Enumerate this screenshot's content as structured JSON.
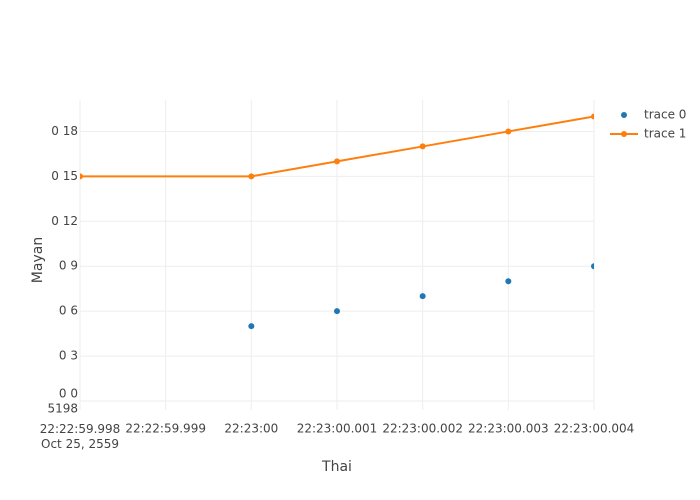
{
  "chart_data": {
    "type": "scatter",
    "x_label": "Thai",
    "y_label": "Mayan",
    "xlim": [
      "22:22:59.998",
      "22:23:00.004"
    ],
    "xticks": [
      {
        "value": "22:22:59.998",
        "label": "22:22:59.998\nOct 25, 2559"
      },
      "22:22:59.999",
      "22:23:00",
      "22:23:00.001",
      "22:23:00.002",
      "22:23:00.003",
      "22:23:00.004"
    ],
    "ylim": [
      -0.6,
      20.1
    ],
    "yticks": [
      {
        "value": 0,
        "label": "0 0\n5198"
      },
      {
        "value": 3,
        "label": "0 3"
      },
      {
        "value": 6,
        "label": "0 6"
      },
      {
        "value": 9,
        "label": "0 9"
      },
      {
        "value": 12,
        "label": "0 12"
      },
      {
        "value": 15,
        "label": "0 15"
      },
      {
        "value": 18,
        "label": "0 18"
      }
    ],
    "grid": true,
    "series": [
      {
        "name": "trace 0",
        "mode": "markers",
        "color": "#1f77b4",
        "x": [
          "22:23:00",
          "22:23:00.001",
          "22:23:00.002",
          "22:23:00.003",
          "22:23:00.004"
        ],
        "values": [
          5,
          6,
          7,
          8,
          9
        ]
      },
      {
        "name": "trace 1",
        "mode": "lines+markers",
        "color": "#ff7f0e",
        "x": [
          "22:22:59.998",
          "22:23:00",
          "22:23:00.001",
          "22:23:00.002",
          "22:23:00.003",
          "22:23:00.004"
        ],
        "values": [
          15,
          15,
          16,
          17,
          18,
          19
        ]
      }
    ]
  }
}
